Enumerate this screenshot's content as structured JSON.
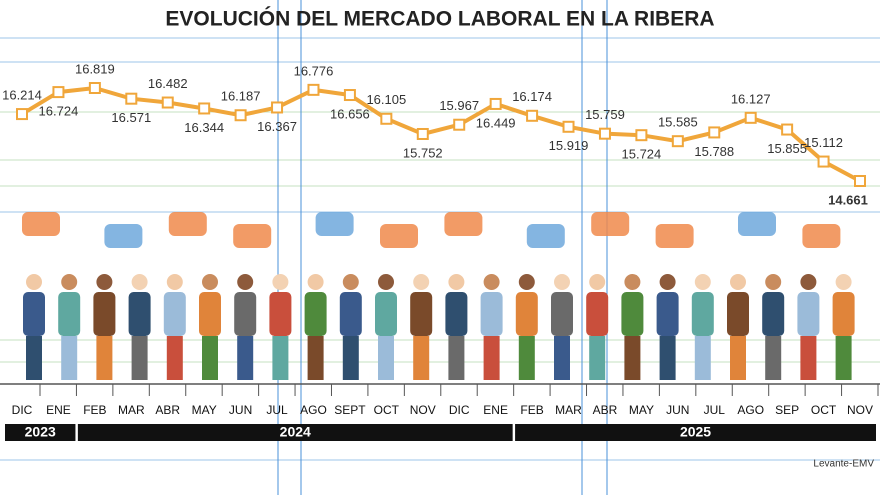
{
  "chart_data": {
    "type": "line",
    "title": "EVOLUCIÓN DEL MERCADO LABORAL EN LA RIBERA",
    "categories": [
      "DIC",
      "ENE",
      "FEB",
      "MAR",
      "ABR",
      "MAY",
      "JUN",
      "JUL",
      "AGO",
      "SEPT",
      "OCT",
      "NOV",
      "DIC",
      "ENE",
      "FEB",
      "MAR",
      "ABR",
      "MAY",
      "JUN",
      "JUL",
      "AGO",
      "SEP",
      "OCT",
      "NOV"
    ],
    "values": [
      16214,
      16724,
      16819,
      16571,
      16482,
      16344,
      16187,
      16367,
      16776,
      16656,
      16105,
      15752,
      15967,
      16449,
      16174,
      15919,
      15759,
      15724,
      15585,
      15788,
      16127,
      15855,
      15112,
      14661
    ],
    "value_labels": [
      "16.214",
      "16.724",
      "16.819",
      "16.571",
      "16.482",
      "16.344",
      "16.187",
      "16.367",
      "16.776",
      "16.656",
      "16.105",
      "15.752",
      "15.967",
      "16.449",
      "16.174",
      "15.919",
      "15.759",
      "15.724",
      "15.585",
      "15.788",
      "16.127",
      "15.855",
      "15.112",
      "14.661"
    ],
    "years": [
      "2023",
      "2024",
      "2025"
    ],
    "color": "#f0a63a",
    "source": "Levante-EMV"
  }
}
